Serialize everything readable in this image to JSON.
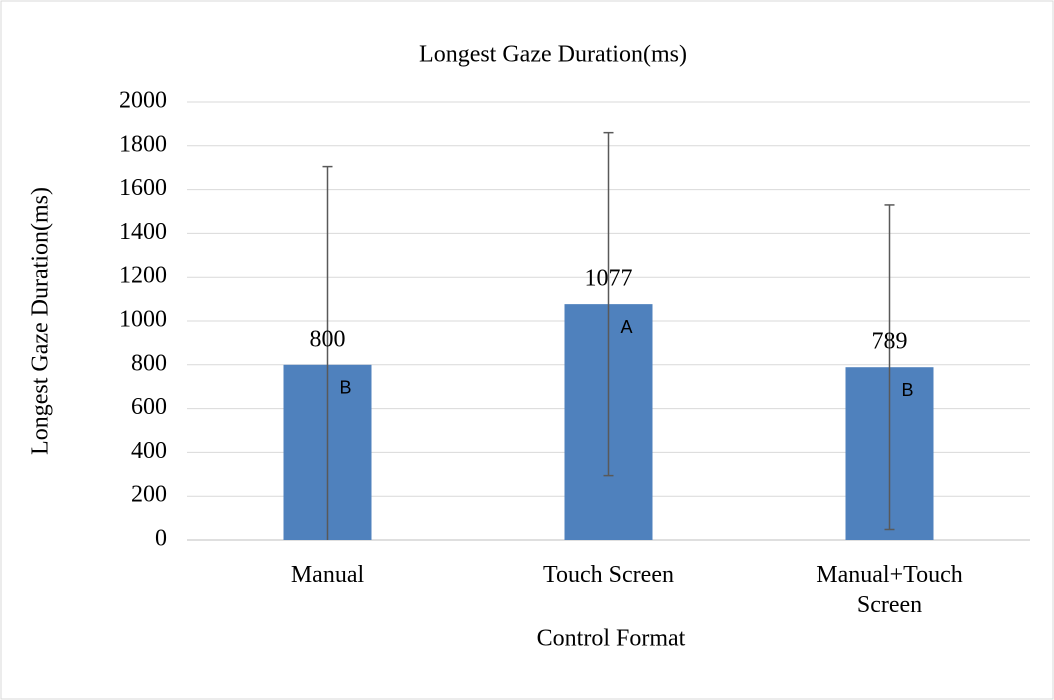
{
  "chart_data": {
    "type": "bar",
    "title": "Longest Gaze Duration(ms)",
    "x_label": "Control Format",
    "y_label": "Longest Gaze Duration(ms)",
    "categories": [
      "Manual",
      "Touch Screen",
      "Manual+Touch Screen"
    ],
    "values": [
      800,
      1077,
      789
    ],
    "errors": [
      905,
      783,
      741
    ],
    "annotations": [
      "B",
      "A",
      "B"
    ],
    "color": "#4f81bd",
    "error_color": "#595959",
    "ylim": [
      0,
      2000
    ],
    "yticks": [
      0,
      200,
      400,
      600,
      800,
      1000,
      1200,
      1400,
      1600,
      1800,
      2000
    ],
    "grid": true
  }
}
